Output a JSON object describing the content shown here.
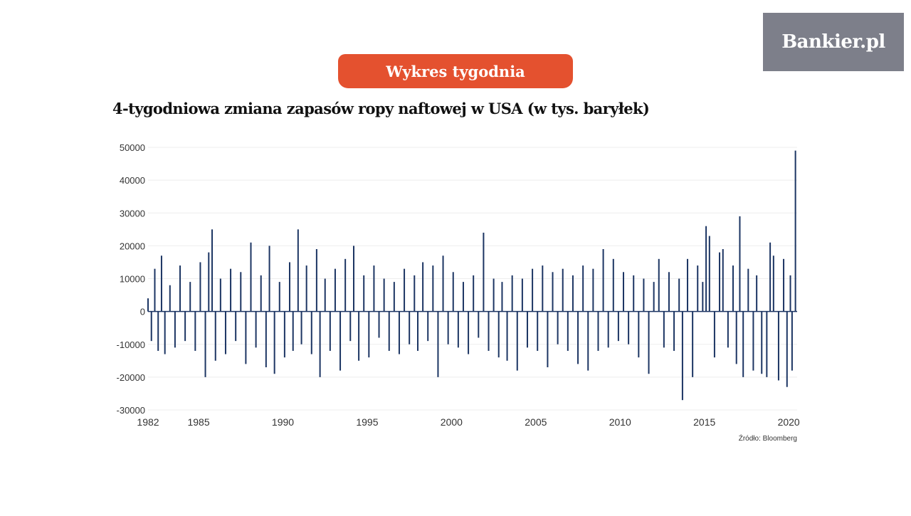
{
  "brand": {
    "logo_text": "Bankier.pl"
  },
  "banner": {
    "label": "Wykres tygodnia"
  },
  "source": "Źródło: Bloomberg",
  "colors": {
    "accent": "#e4512f",
    "bars": "#1c3563",
    "logo_bg": "#7d7f8a"
  },
  "chart_data": {
    "type": "bar",
    "title": "4-tygodniowa zmiana zapasów ropy naftowej w USA (w tys. baryłek)",
    "xlabel": "",
    "ylabel": "",
    "ylim": [
      -30000,
      50000
    ],
    "yticks": [
      50000,
      40000,
      30000,
      20000,
      10000,
      0,
      -10000,
      -20000,
      -30000
    ],
    "xlim": [
      1982,
      2020.5
    ],
    "xticks": [
      1982,
      1985,
      1990,
      1995,
      2000,
      2005,
      2010,
      2015,
      2020
    ],
    "grid": true,
    "series": [
      {
        "values": [
          [
            1982.0,
            4000
          ],
          [
            1982.2,
            -9000
          ],
          [
            1982.4,
            13000
          ],
          [
            1982.6,
            -12000
          ],
          [
            1982.8,
            17000
          ],
          [
            1983.0,
            -13000
          ],
          [
            1983.3,
            8000
          ],
          [
            1983.6,
            -11000
          ],
          [
            1983.9,
            14000
          ],
          [
            1984.2,
            -9000
          ],
          [
            1984.5,
            9000
          ],
          [
            1984.8,
            -12000
          ],
          [
            1985.1,
            15000
          ],
          [
            1985.4,
            -20000
          ],
          [
            1985.6,
            18000
          ],
          [
            1985.8,
            25000
          ],
          [
            1986.0,
            -15000
          ],
          [
            1986.3,
            10000
          ],
          [
            1986.6,
            -13000
          ],
          [
            1986.9,
            13000
          ],
          [
            1987.2,
            -9000
          ],
          [
            1987.5,
            12000
          ],
          [
            1987.8,
            -16000
          ],
          [
            1988.1,
            21000
          ],
          [
            1988.4,
            -11000
          ],
          [
            1988.7,
            11000
          ],
          [
            1989.0,
            -17000
          ],
          [
            1989.2,
            20000
          ],
          [
            1989.5,
            -19000
          ],
          [
            1989.8,
            9000
          ],
          [
            1990.1,
            -14000
          ],
          [
            1990.4,
            15000
          ],
          [
            1990.6,
            -12000
          ],
          [
            1990.9,
            25000
          ],
          [
            1991.1,
            -10000
          ],
          [
            1991.4,
            14000
          ],
          [
            1991.7,
            -13000
          ],
          [
            1992.0,
            19000
          ],
          [
            1992.2,
            -20000
          ],
          [
            1992.5,
            10000
          ],
          [
            1992.8,
            -12000
          ],
          [
            1993.1,
            13000
          ],
          [
            1993.4,
            -18000
          ],
          [
            1993.7,
            16000
          ],
          [
            1994.0,
            -9000
          ],
          [
            1994.2,
            20000
          ],
          [
            1994.5,
            -15000
          ],
          [
            1994.8,
            11000
          ],
          [
            1995.1,
            -14000
          ],
          [
            1995.4,
            14000
          ],
          [
            1995.7,
            -8000
          ],
          [
            1996.0,
            10000
          ],
          [
            1996.3,
            -12000
          ],
          [
            1996.6,
            9000
          ],
          [
            1996.9,
            -13000
          ],
          [
            1997.2,
            13000
          ],
          [
            1997.5,
            -10000
          ],
          [
            1997.8,
            11000
          ],
          [
            1998.0,
            -12000
          ],
          [
            1998.3,
            15000
          ],
          [
            1998.6,
            -9000
          ],
          [
            1998.9,
            14000
          ],
          [
            1999.2,
            -20000
          ],
          [
            1999.5,
            17000
          ],
          [
            1999.8,
            -10000
          ],
          [
            2000.1,
            12000
          ],
          [
            2000.4,
            -11000
          ],
          [
            2000.7,
            9000
          ],
          [
            2001.0,
            -13000
          ],
          [
            2001.3,
            11000
          ],
          [
            2001.6,
            -8000
          ],
          [
            2001.9,
            24000
          ],
          [
            2002.2,
            -12000
          ],
          [
            2002.5,
            10000
          ],
          [
            2002.8,
            -14000
          ],
          [
            2003.0,
            9000
          ],
          [
            2003.3,
            -15000
          ],
          [
            2003.6,
            11000
          ],
          [
            2003.9,
            -18000
          ],
          [
            2004.2,
            10000
          ],
          [
            2004.5,
            -11000
          ],
          [
            2004.8,
            13000
          ],
          [
            2005.1,
            -12000
          ],
          [
            2005.4,
            14000
          ],
          [
            2005.7,
            -17000
          ],
          [
            2006.0,
            12000
          ],
          [
            2006.3,
            -10000
          ],
          [
            2006.6,
            13000
          ],
          [
            2006.9,
            -12000
          ],
          [
            2007.2,
            11000
          ],
          [
            2007.5,
            -16000
          ],
          [
            2007.8,
            14000
          ],
          [
            2008.1,
            -18000
          ],
          [
            2008.4,
            13000
          ],
          [
            2008.7,
            -12000
          ],
          [
            2009.0,
            19000
          ],
          [
            2009.3,
            -11000
          ],
          [
            2009.6,
            16000
          ],
          [
            2009.9,
            -9000
          ],
          [
            2010.2,
            12000
          ],
          [
            2010.5,
            -10000
          ],
          [
            2010.8,
            11000
          ],
          [
            2011.1,
            -14000
          ],
          [
            2011.4,
            10000
          ],
          [
            2011.7,
            -19000
          ],
          [
            2012.0,
            9000
          ],
          [
            2012.3,
            16000
          ],
          [
            2012.6,
            -11000
          ],
          [
            2012.9,
            12000
          ],
          [
            2013.2,
            -12000
          ],
          [
            2013.5,
            10000
          ],
          [
            2013.7,
            -27000
          ],
          [
            2014.0,
            16000
          ],
          [
            2014.3,
            -20000
          ],
          [
            2014.6,
            14000
          ],
          [
            2014.9,
            9000
          ],
          [
            2015.1,
            26000
          ],
          [
            2015.3,
            23000
          ],
          [
            2015.6,
            -14000
          ],
          [
            2015.9,
            18000
          ],
          [
            2016.1,
            19000
          ],
          [
            2016.4,
            -11000
          ],
          [
            2016.7,
            14000
          ],
          [
            2016.9,
            -16000
          ],
          [
            2017.1,
            29000
          ],
          [
            2017.3,
            -20000
          ],
          [
            2017.6,
            13000
          ],
          [
            2017.9,
            -18000
          ],
          [
            2018.1,
            11000
          ],
          [
            2018.4,
            -19000
          ],
          [
            2018.7,
            -20000
          ],
          [
            2018.9,
            21000
          ],
          [
            2019.1,
            17000
          ],
          [
            2019.4,
            -21000
          ],
          [
            2019.7,
            16000
          ],
          [
            2019.9,
            -23000
          ],
          [
            2020.1,
            11000
          ],
          [
            2020.2,
            -18000
          ],
          [
            2020.4,
            49000
          ]
        ]
      }
    ]
  }
}
